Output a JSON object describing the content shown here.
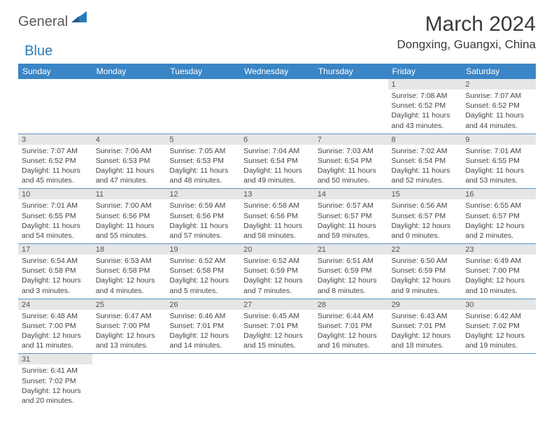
{
  "brand": {
    "part1": "General",
    "part2": "Blue"
  },
  "title": "March 2024",
  "location": "Dongxing, Guangxi, China",
  "colors": {
    "header_bg": "#3a85c5",
    "row_divider": "#5a93c4",
    "daynum_bg": "#e6e6e6",
    "brand_gray": "#58595b",
    "brand_blue": "#2a7ab8"
  },
  "weekdays": [
    "Sunday",
    "Monday",
    "Tuesday",
    "Wednesday",
    "Thursday",
    "Friday",
    "Saturday"
  ],
  "layout": {
    "columns": 7,
    "rows": 6,
    "start_weekday_index": 5,
    "days_in_month": 31
  },
  "days": [
    {
      "n": 1,
      "sunrise": "7:08 AM",
      "sunset": "6:52 PM",
      "daylight": "11 hours and 43 minutes."
    },
    {
      "n": 2,
      "sunrise": "7:07 AM",
      "sunset": "6:52 PM",
      "daylight": "11 hours and 44 minutes."
    },
    {
      "n": 3,
      "sunrise": "7:07 AM",
      "sunset": "6:52 PM",
      "daylight": "11 hours and 45 minutes."
    },
    {
      "n": 4,
      "sunrise": "7:06 AM",
      "sunset": "6:53 PM",
      "daylight": "11 hours and 47 minutes."
    },
    {
      "n": 5,
      "sunrise": "7:05 AM",
      "sunset": "6:53 PM",
      "daylight": "11 hours and 48 minutes."
    },
    {
      "n": 6,
      "sunrise": "7:04 AM",
      "sunset": "6:54 PM",
      "daylight": "11 hours and 49 minutes."
    },
    {
      "n": 7,
      "sunrise": "7:03 AM",
      "sunset": "6:54 PM",
      "daylight": "11 hours and 50 minutes."
    },
    {
      "n": 8,
      "sunrise": "7:02 AM",
      "sunset": "6:54 PM",
      "daylight": "11 hours and 52 minutes."
    },
    {
      "n": 9,
      "sunrise": "7:01 AM",
      "sunset": "6:55 PM",
      "daylight": "11 hours and 53 minutes."
    },
    {
      "n": 10,
      "sunrise": "7:01 AM",
      "sunset": "6:55 PM",
      "daylight": "11 hours and 54 minutes."
    },
    {
      "n": 11,
      "sunrise": "7:00 AM",
      "sunset": "6:56 PM",
      "daylight": "11 hours and 55 minutes."
    },
    {
      "n": 12,
      "sunrise": "6:59 AM",
      "sunset": "6:56 PM",
      "daylight": "11 hours and 57 minutes."
    },
    {
      "n": 13,
      "sunrise": "6:58 AM",
      "sunset": "6:56 PM",
      "daylight": "11 hours and 58 minutes."
    },
    {
      "n": 14,
      "sunrise": "6:57 AM",
      "sunset": "6:57 PM",
      "daylight": "11 hours and 59 minutes."
    },
    {
      "n": 15,
      "sunrise": "6:56 AM",
      "sunset": "6:57 PM",
      "daylight": "12 hours and 0 minutes."
    },
    {
      "n": 16,
      "sunrise": "6:55 AM",
      "sunset": "6:57 PM",
      "daylight": "12 hours and 2 minutes."
    },
    {
      "n": 17,
      "sunrise": "6:54 AM",
      "sunset": "6:58 PM",
      "daylight": "12 hours and 3 minutes."
    },
    {
      "n": 18,
      "sunrise": "6:53 AM",
      "sunset": "6:58 PM",
      "daylight": "12 hours and 4 minutes."
    },
    {
      "n": 19,
      "sunrise": "6:52 AM",
      "sunset": "6:58 PM",
      "daylight": "12 hours and 5 minutes."
    },
    {
      "n": 20,
      "sunrise": "6:52 AM",
      "sunset": "6:59 PM",
      "daylight": "12 hours and 7 minutes."
    },
    {
      "n": 21,
      "sunrise": "6:51 AM",
      "sunset": "6:59 PM",
      "daylight": "12 hours and 8 minutes."
    },
    {
      "n": 22,
      "sunrise": "6:50 AM",
      "sunset": "6:59 PM",
      "daylight": "12 hours and 9 minutes."
    },
    {
      "n": 23,
      "sunrise": "6:49 AM",
      "sunset": "7:00 PM",
      "daylight": "12 hours and 10 minutes."
    },
    {
      "n": 24,
      "sunrise": "6:48 AM",
      "sunset": "7:00 PM",
      "daylight": "12 hours and 11 minutes."
    },
    {
      "n": 25,
      "sunrise": "6:47 AM",
      "sunset": "7:00 PM",
      "daylight": "12 hours and 13 minutes."
    },
    {
      "n": 26,
      "sunrise": "6:46 AM",
      "sunset": "7:01 PM",
      "daylight": "12 hours and 14 minutes."
    },
    {
      "n": 27,
      "sunrise": "6:45 AM",
      "sunset": "7:01 PM",
      "daylight": "12 hours and 15 minutes."
    },
    {
      "n": 28,
      "sunrise": "6:44 AM",
      "sunset": "7:01 PM",
      "daylight": "12 hours and 16 minutes."
    },
    {
      "n": 29,
      "sunrise": "6:43 AM",
      "sunset": "7:01 PM",
      "daylight": "12 hours and 18 minutes."
    },
    {
      "n": 30,
      "sunrise": "6:42 AM",
      "sunset": "7:02 PM",
      "daylight": "12 hours and 19 minutes."
    },
    {
      "n": 31,
      "sunrise": "6:41 AM",
      "sunset": "7:02 PM",
      "daylight": "12 hours and 20 minutes."
    }
  ],
  "labels": {
    "sunrise": "Sunrise:",
    "sunset": "Sunset:",
    "daylight": "Daylight:"
  }
}
